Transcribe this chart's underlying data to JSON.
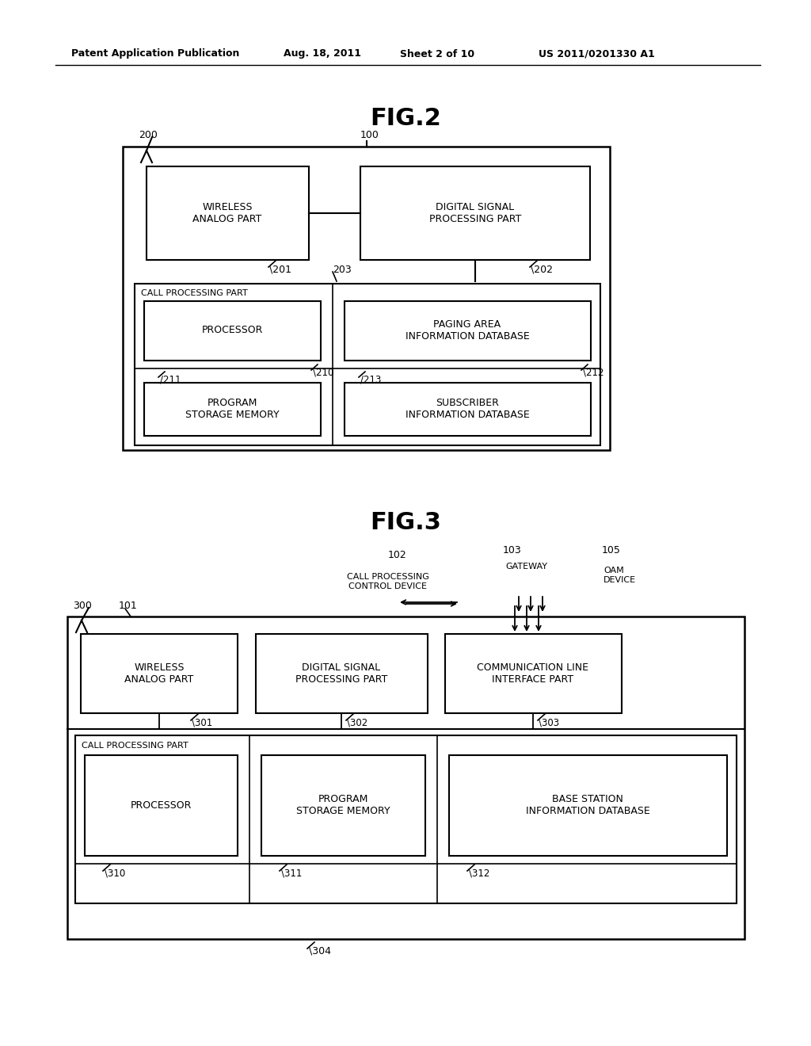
{
  "bg_color": "#ffffff",
  "header_text": "Patent Application Publication",
  "header_date": "Aug. 18, 2011",
  "header_sheet": "Sheet 2 of 10",
  "header_patent": "US 2011/0201330 A1",
  "fig2_title": "FIG.2",
  "fig3_title": "FIG.3"
}
